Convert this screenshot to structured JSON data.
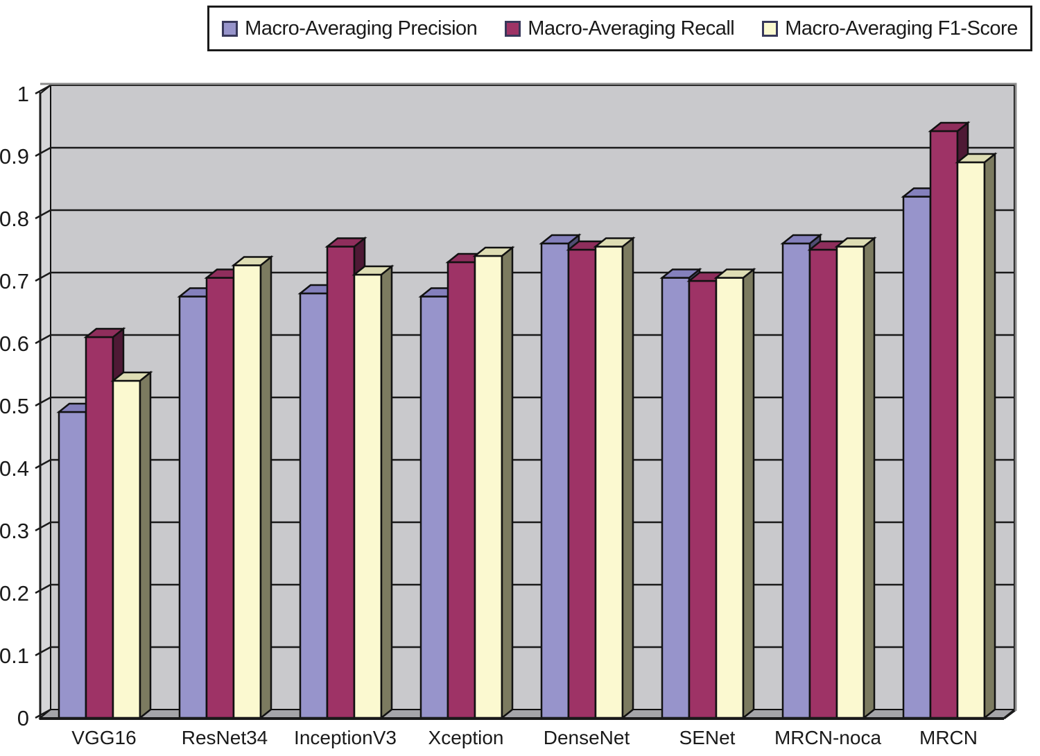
{
  "chart_data": {
    "type": "bar",
    "style": "3d-oblique",
    "title": "",
    "xlabel": "",
    "ylabel": "",
    "ylim": [
      0,
      1
    ],
    "ytick_step": 0.1,
    "ytick_labels": [
      "0",
      "0.1",
      "0.2",
      "0.3",
      "0.4",
      "0.5",
      "0.6",
      "0.7",
      "0.8",
      "0.9",
      "1"
    ],
    "grid": true,
    "legend_position": "top",
    "categories": [
      "VGG16",
      "ResNet34",
      "InceptionV3",
      "Xception",
      "DenseNet",
      "SENet",
      "MRCN-noca",
      "MRCN"
    ],
    "series": [
      {
        "name": "Macro-Averaging Precision",
        "color_front": "#9794CB",
        "color_side": "#4F4D72",
        "color_top": "#8480BC",
        "values": [
          0.49,
          0.675,
          0.68,
          0.675,
          0.76,
          0.705,
          0.76,
          0.835
        ]
      },
      {
        "name": "Macro-Averaging Recall",
        "color_front": "#9E3366",
        "color_side": "#4E1935",
        "color_top": "#8F2E5C",
        "values": [
          0.61,
          0.705,
          0.755,
          0.73,
          0.75,
          0.7,
          0.75,
          0.94
        ]
      },
      {
        "name": "Macro-Averaging F1-Score",
        "color_front": "#FBF9D0",
        "color_side": "#7C7B60",
        "color_top": "#DEDDB4",
        "values": [
          0.54,
          0.725,
          0.71,
          0.74,
          0.755,
          0.705,
          0.755,
          0.89
        ]
      }
    ],
    "colors": {
      "wall": "#C9C9CC",
      "left_wall": "#D6D6D8",
      "floor": "#A5A5A9",
      "gridline": "#1a1a1a",
      "outer_border": "#8C8C8C",
      "bar_outline": "#111111",
      "background": "#ffffff"
    }
  }
}
